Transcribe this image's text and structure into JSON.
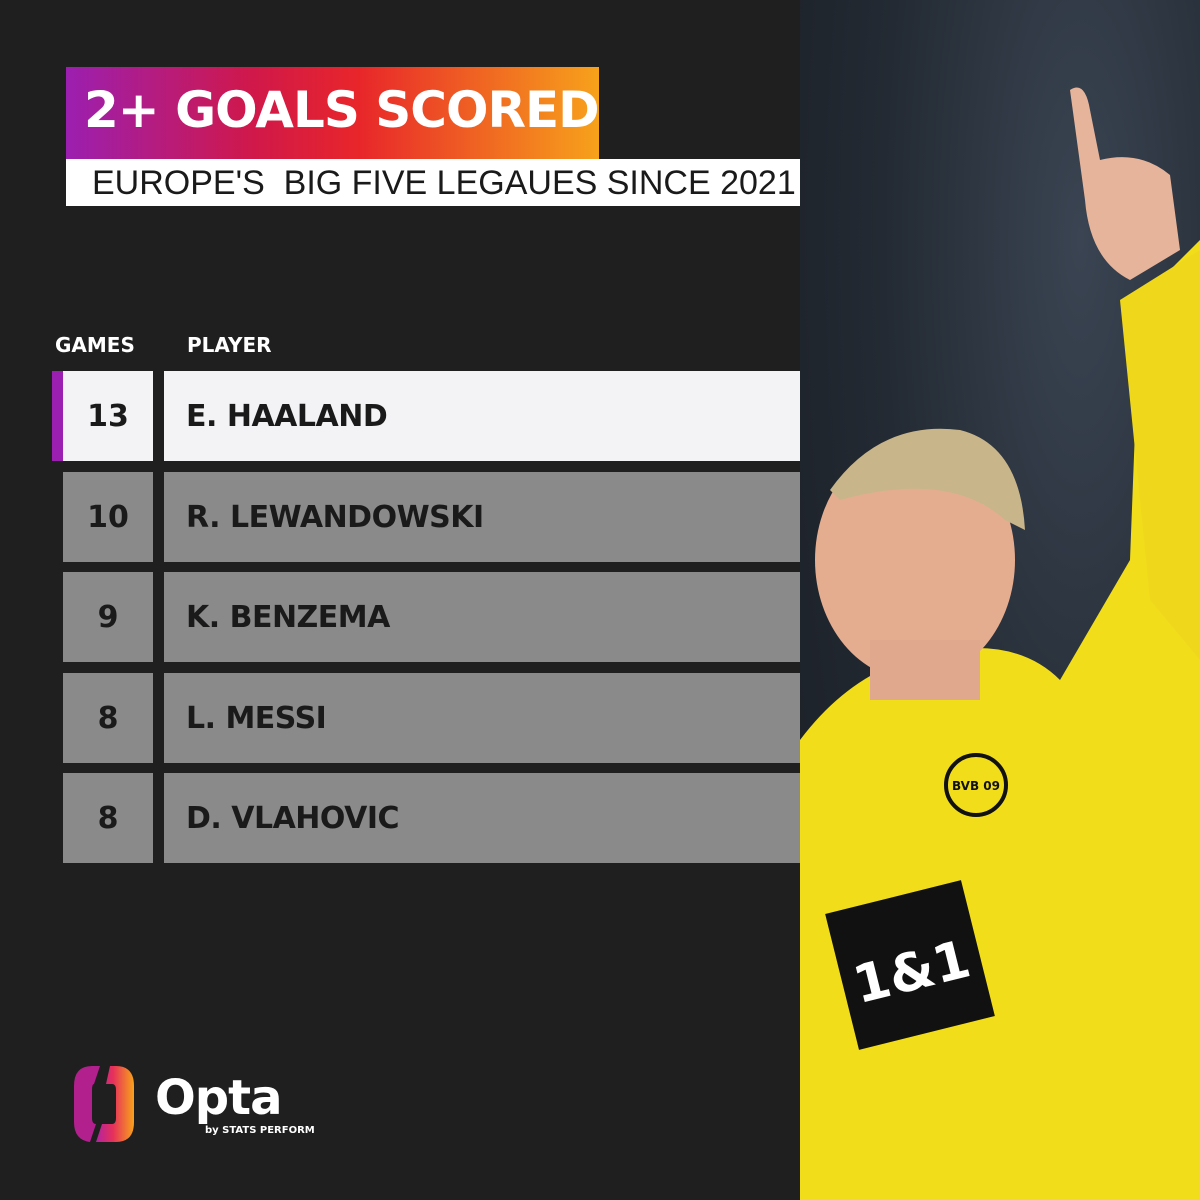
{
  "header": {
    "title": "2+ GOALS SCORED",
    "subtitle": "EUROPE'S  BIG FIVE LEGAUES SINCE 2021"
  },
  "chart_data": {
    "type": "table",
    "title": "2+ GOALS SCORED",
    "subtitle": "EUROPE'S  BIG FIVE LEGAUES SINCE 2021",
    "columns": [
      "GAMES",
      "PLAYER"
    ],
    "rows": [
      {
        "games": "13",
        "player": "E. HAALAND"
      },
      {
        "games": "10",
        "player": "R. LEWANDOWSKI"
      },
      {
        "games": "9",
        "player": "K. BENZEMA"
      },
      {
        "games": "8",
        "player": "L. MESSI"
      },
      {
        "games": "8",
        "player": "D. VLAHOVIC"
      }
    ],
    "highlight_color": "#9b1fb0"
  },
  "branding": {
    "logo": "Opta",
    "tagline": "by STATS PERFORM",
    "sponsor": "1&1",
    "club": "BVB 09"
  }
}
